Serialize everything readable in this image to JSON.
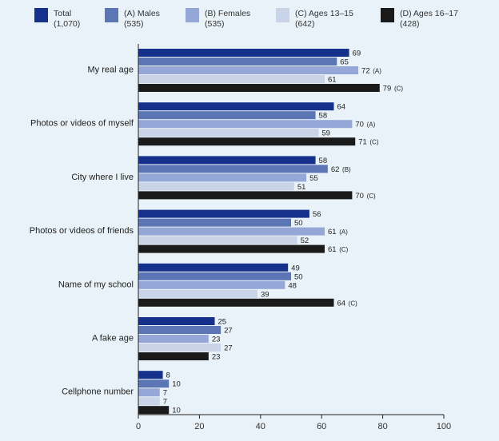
{
  "chart_data": {
    "type": "bar",
    "orientation": "horizontal",
    "categories": [
      "My real age",
      "Photos or videos of myself",
      "City where I live",
      "Photos or videos of friends",
      "Name of my school",
      "A fake age",
      "Cellphone number"
    ],
    "series": [
      {
        "name": "Total",
        "legend_line1": "Total",
        "legend_line2": "(1,070)",
        "color": "#16318b",
        "values": [
          69,
          64,
          58,
          56,
          49,
          25,
          8
        ],
        "labels": [
          "69",
          "64",
          "58",
          "56",
          "49",
          "25",
          "8"
        ],
        "sig": [
          "",
          "",
          "",
          "",
          "",
          "",
          ""
        ]
      },
      {
        "name": "(A) Males",
        "legend_line1": "(A) Males",
        "legend_line2": "(535)",
        "color": "#5c75b5",
        "values": [
          65,
          58,
          62,
          50,
          50,
          27,
          10
        ],
        "labels": [
          "65",
          "58",
          "62",
          "50",
          "50",
          "27",
          "10"
        ],
        "sig": [
          "",
          "",
          "(B)",
          "",
          "",
          "",
          ""
        ]
      },
      {
        "name": "(B) Females",
        "legend_line1": "(B) Females",
        "legend_line2": "(535)",
        "color": "#95a7d6",
        "values": [
          72,
          70,
          55,
          61,
          48,
          23,
          7
        ],
        "labels": [
          "72",
          "70",
          "55",
          "61",
          "48",
          "23",
          "7"
        ],
        "sig": [
          "(A)",
          "(A)",
          "",
          "(A)",
          "",
          "",
          ""
        ]
      },
      {
        "name": "(C) Ages 13–15",
        "legend_line1": "(C) Ages 13–15",
        "legend_line2": "(642)",
        "color": "#c9d4e8",
        "values": [
          61,
          59,
          51,
          52,
          39,
          27,
          7
        ],
        "labels": [
          "61",
          "59",
          "51",
          "52",
          "39",
          "27",
          "7"
        ],
        "sig": [
          "",
          "",
          "",
          "",
          "",
          "",
          ""
        ]
      },
      {
        "name": "(D) Ages 16–17",
        "legend_line1": "(D) Ages 16–17",
        "legend_line2": "(428)",
        "color": "#1a1a1a",
        "values": [
          79,
          71,
          70,
          61,
          64,
          23,
          10
        ],
        "labels": [
          "79",
          "71",
          "70",
          "61",
          "64",
          "23",
          "10"
        ],
        "sig": [
          "(C)",
          "(C)",
          "(C)",
          "(C)",
          "(C)",
          "",
          ""
        ]
      }
    ],
    "xlim": [
      0,
      100
    ],
    "xticks": [
      "0",
      "20",
      "40",
      "60",
      "80",
      "100"
    ],
    "xtick_values": [
      0,
      20,
      40,
      60,
      80,
      100
    ],
    "legend_position": "top",
    "grid": false,
    "title": "",
    "xlabel": "",
    "ylabel": ""
  },
  "colors": {
    "background": "#e9f2f8",
    "axis": "#222222",
    "text": "#222222"
  }
}
